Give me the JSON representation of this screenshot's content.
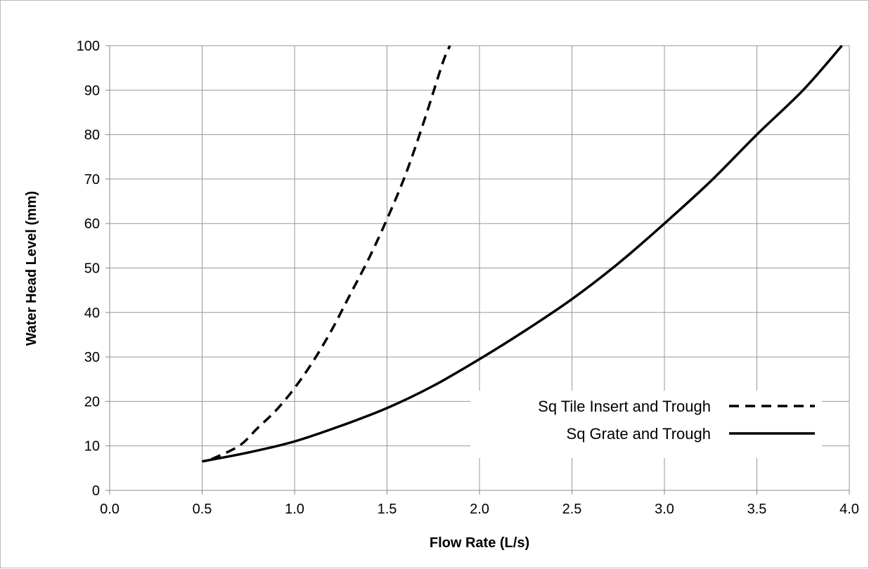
{
  "chart_data": {
    "type": "line",
    "title": "",
    "xlabel": "Flow Rate (L/s)",
    "ylabel": "Water Head Level (mm)",
    "xlim": [
      0.0,
      4.0
    ],
    "ylim": [
      0,
      100
    ],
    "x_ticks": [
      "0.0",
      "0.5",
      "1.0",
      "1.5",
      "2.0",
      "2.5",
      "3.0",
      "3.5",
      "4.0"
    ],
    "y_ticks": [
      "0",
      "10",
      "20",
      "30",
      "40",
      "50",
      "60",
      "70",
      "80",
      "90",
      "100"
    ],
    "grid": true,
    "legend_position": "bottom-right",
    "series": [
      {
        "name": "Sq Tile Insert and Trough",
        "line_style": "dashed",
        "color": "#000000",
        "x": [
          0.55,
          0.7,
          0.8,
          0.9,
          1.0,
          1.1,
          1.2,
          1.3,
          1.4,
          1.5,
          1.6,
          1.7,
          1.8,
          1.84
        ],
        "y": [
          7,
          10,
          14,
          18,
          23,
          29,
          36,
          44,
          52,
          61,
          71,
          83,
          96,
          100
        ]
      },
      {
        "name": "Sq Grate and Trough",
        "line_style": "solid",
        "color": "#000000",
        "x": [
          0.5,
          0.75,
          1.0,
          1.25,
          1.5,
          1.75,
          2.0,
          2.25,
          2.5,
          2.75,
          3.0,
          3.25,
          3.5,
          3.75,
          3.96
        ],
        "y": [
          6.5,
          8.5,
          11,
          14.5,
          18.5,
          23.5,
          29.5,
          36,
          43,
          51,
          60,
          69.5,
          80,
          90,
          100
        ]
      }
    ]
  }
}
